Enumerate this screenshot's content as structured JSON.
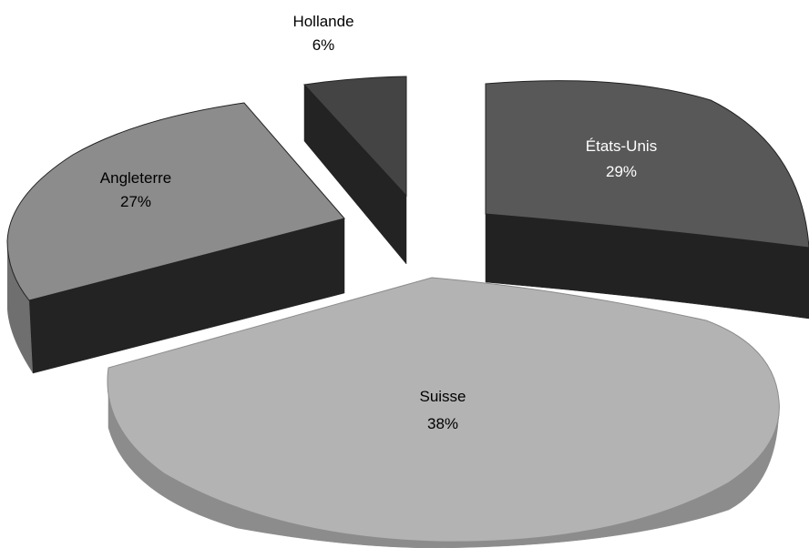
{
  "chart_data": {
    "type": "pie",
    "style": "3d-exploded",
    "title": "",
    "slices": [
      {
        "label": "États-Unis",
        "value_label": "29%",
        "value": 29,
        "color": "#585858",
        "side_color": "#222222",
        "label_color": "#ffffff"
      },
      {
        "label": "Suisse",
        "value_label": "38%",
        "value": 38,
        "color": "#b3b3b3",
        "side_color": "#8c8c8c",
        "label_color": "#000000"
      },
      {
        "label": "Angleterre",
        "value_label": "27%",
        "value": 27,
        "color": "#8c8c8c",
        "side_color": "#232323",
        "label_color": "#000000"
      },
      {
        "label": "Hollande",
        "value_label": "6%",
        "value": 6,
        "color": "#444444",
        "side_color": "#232323",
        "label_color": "#000000"
      }
    ]
  }
}
